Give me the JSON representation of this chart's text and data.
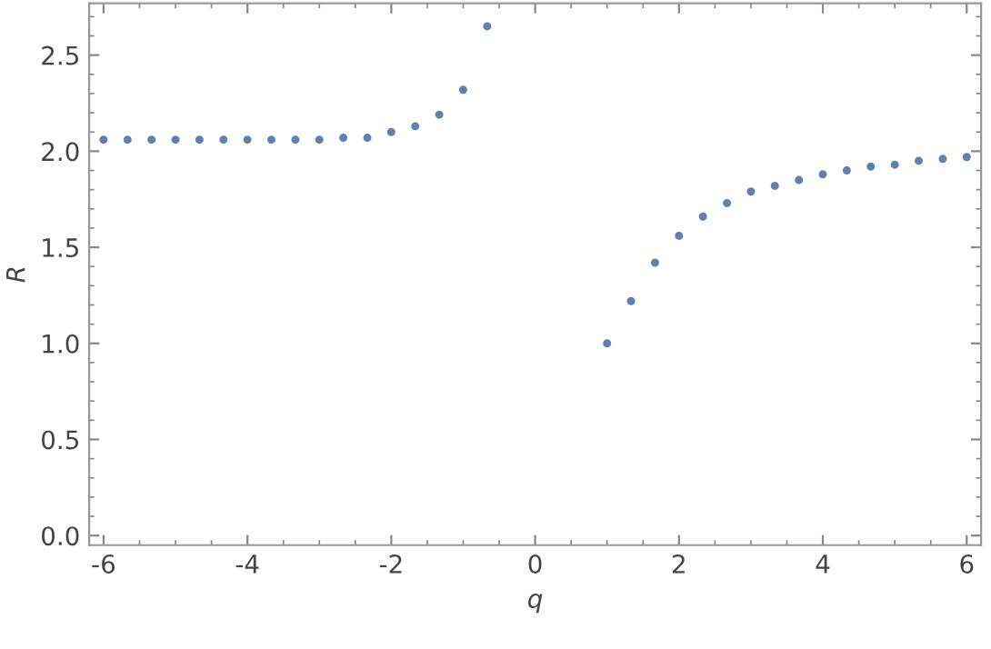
{
  "chart_data": {
    "type": "scatter",
    "xlabel": "q",
    "ylabel": "R",
    "series": [
      {
        "color": "#5e81b5",
        "x": [
          -6,
          -5.667,
          -5.333,
          -5,
          -4.667,
          -4.333,
          -4,
          -3.667,
          -3.333,
          -3,
          -2.667,
          -2.333,
          -2,
          -1.667,
          -1.333,
          -1,
          -0.667,
          1,
          1.333,
          1.667,
          2,
          2.333,
          2.667,
          3,
          3.333,
          3.667,
          4,
          4.333,
          4.667,
          5,
          5.333,
          5.667,
          6
        ],
        "values": [
          2.06,
          2.06,
          2.06,
          2.06,
          2.06,
          2.06,
          2.06,
          2.06,
          2.06,
          2.06,
          2.07,
          2.07,
          2.1,
          2.13,
          2.19,
          2.32,
          2.65,
          1.0,
          1.22,
          1.42,
          1.56,
          1.66,
          1.73,
          1.79,
          1.82,
          1.85,
          1.88,
          1.9,
          1.92,
          1.93,
          1.95,
          1.96,
          1.97
        ]
      }
    ],
    "xlim": [
      -6.2,
      6.2
    ],
    "ylim": [
      -0.05,
      2.77
    ],
    "xticks": [
      -6,
      -4,
      -2,
      0,
      2,
      4,
      6
    ],
    "yticks": [
      {
        "value": 0,
        "label": "0.0"
      },
      0.5,
      {
        "value": 1,
        "label": "1.0"
      },
      1.5,
      {
        "value": 2,
        "label": "2.0"
      },
      2.5
    ],
    "marker": "circle",
    "grid": false,
    "legend": false
  }
}
